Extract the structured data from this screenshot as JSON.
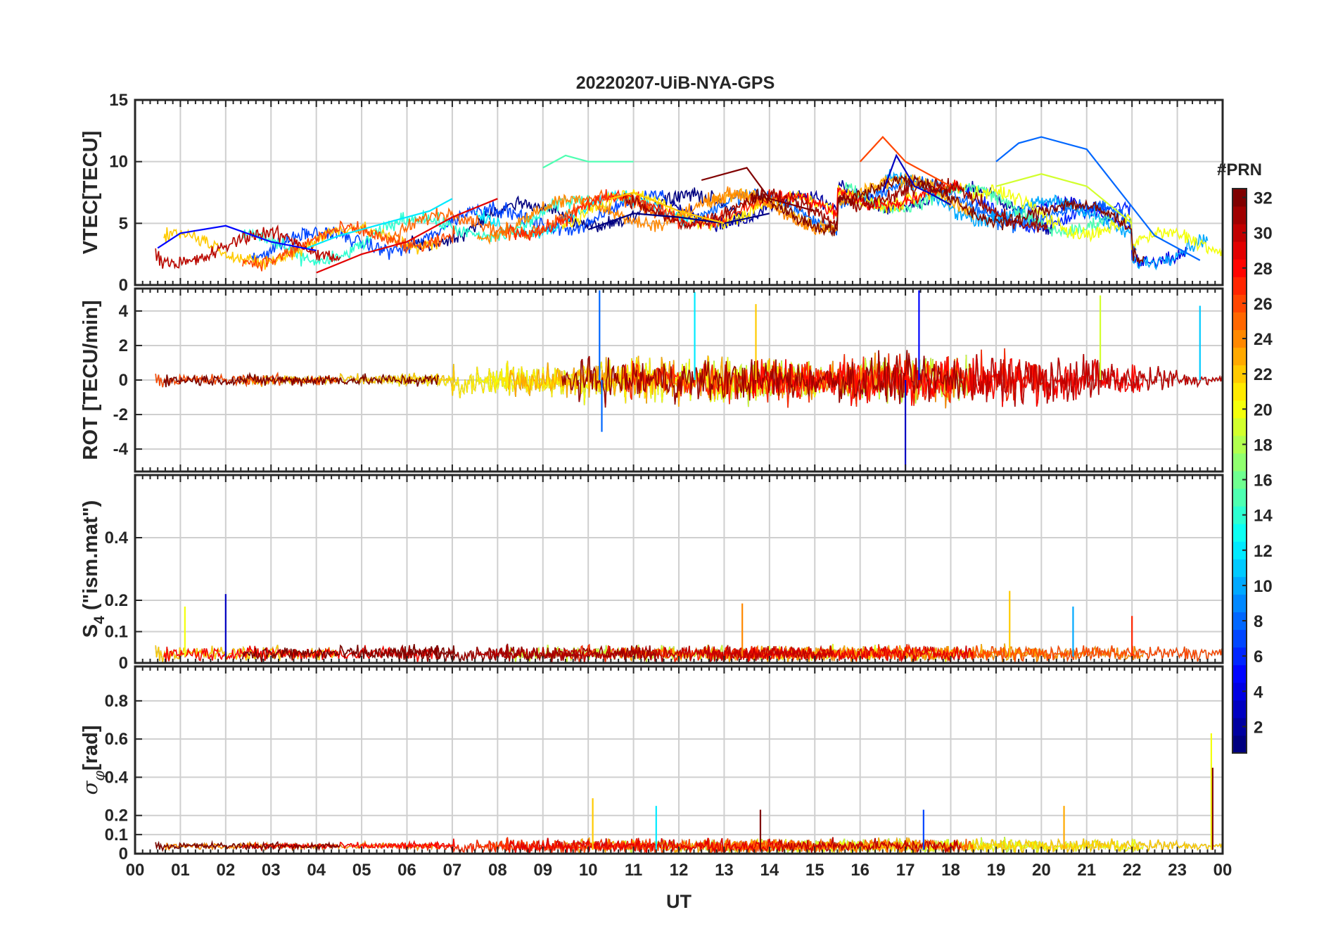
{
  "chart_data": [
    {
      "type": "line",
      "panel": "vtec",
      "title": "20220207-UiB-NYA-GPS",
      "ylabel": "VTEC[TECU]",
      "ylim": [
        0,
        15
      ],
      "yticks": [
        0,
        5,
        10,
        15
      ],
      "ytick_labels": [
        "0",
        "5",
        "10",
        "15"
      ],
      "x_units": "UT hours",
      "xlim": [
        0,
        24
      ],
      "series": [
        {
          "prn": 1,
          "x": [
            10.0,
            11.0,
            12.0,
            13.0,
            14.0
          ],
          "y": [
            4.5,
            5.8,
            5.5,
            5.0,
            5.8
          ]
        },
        {
          "prn": 3,
          "x": [
            16.5,
            16.8,
            17.2,
            17.5,
            18.0
          ],
          "y": [
            7.5,
            10.5,
            8.0,
            7.5,
            6.5
          ]
        },
        {
          "prn": 5,
          "x": [
            0.5,
            1.0,
            2.0,
            3.0,
            4.0
          ],
          "y": [
            3.0,
            4.2,
            4.8,
            3.5,
            2.8
          ]
        },
        {
          "prn": 8,
          "x": [
            19.0,
            19.5,
            20.0,
            21.0,
            22.5,
            23.5
          ],
          "y": [
            10.0,
            11.5,
            12.0,
            11.0,
            4.0,
            2.0
          ]
        },
        {
          "prn": 12,
          "x": [
            3.8,
            4.5,
            5.5,
            6.5,
            7.0
          ],
          "y": [
            3.0,
            4.0,
            5.0,
            6.0,
            7.0
          ]
        },
        {
          "prn": 15,
          "x": [
            9.0,
            9.5,
            10.0,
            11.0
          ],
          "y": [
            9.5,
            10.5,
            10.0,
            10.0
          ]
        },
        {
          "prn": 19,
          "x": [
            19.0,
            20.0,
            21.0,
            22.0
          ],
          "y": [
            8.0,
            9.0,
            8.0,
            5.0
          ]
        },
        {
          "prn": 22,
          "x": [
            10.5,
            11.0,
            12.0,
            13.0
          ],
          "y": [
            7.0,
            7.5,
            6.0,
            5.0
          ]
        },
        {
          "prn": 26,
          "x": [
            16.0,
            16.5,
            17.0,
            17.5,
            18.0
          ],
          "y": [
            10.0,
            12.0,
            10.0,
            9.0,
            8.0
          ]
        },
        {
          "prn": 29,
          "x": [
            4.0,
            5.0,
            6.0,
            7.0,
            8.0
          ],
          "y": [
            1.0,
            2.5,
            3.5,
            5.5,
            7.0
          ]
        },
        {
          "prn": 32,
          "x": [
            12.5,
            13.0,
            13.5,
            14.0,
            15.0
          ],
          "y": [
            8.5,
            9.0,
            9.5,
            7.0,
            6.0
          ]
        }
      ]
    },
    {
      "type": "line",
      "panel": "rot",
      "ylabel": "ROT [TECU/min]",
      "ylim": [
        -5.3,
        5.3
      ],
      "yticks": [
        -4,
        -2,
        0,
        2,
        4
      ],
      "ytick_labels": [
        "-4",
        "-2",
        "0",
        "2",
        "4"
      ],
      "xlim": [
        0,
        24
      ],
      "spikes": [
        {
          "prn": 8,
          "x": 10.25,
          "y": 5.2
        },
        {
          "prn": 8,
          "x": 10.3,
          "y": -3.0
        },
        {
          "prn": 12,
          "x": 12.35,
          "y": 5.1
        },
        {
          "prn": 5,
          "x": 17.3,
          "y": 5.2
        },
        {
          "prn": 3,
          "x": 17.0,
          "y": -5.3
        },
        {
          "prn": 19,
          "x": 21.3,
          "y": 4.9
        },
        {
          "prn": 11,
          "x": 23.5,
          "y": 4.3
        },
        {
          "prn": 22,
          "x": 13.7,
          "y": 4.4
        }
      ]
    },
    {
      "type": "line",
      "panel": "s4",
      "ylabel": "S4 (\"ism.mat\")",
      "ylabel_parts": [
        "S",
        "4",
        " (\"ism.mat\")"
      ],
      "ylim": [
        0,
        0.6
      ],
      "yticks": [
        0,
        0.1,
        0.2,
        0.4
      ],
      "ytick_labels": [
        "0",
        "0.1",
        "0.2",
        "0.4"
      ],
      "xlim": [
        0,
        24
      ],
      "peaks": [
        {
          "prn": 3,
          "x": 2.0,
          "y": 0.22
        },
        {
          "prn": 20,
          "x": 1.1,
          "y": 0.18
        },
        {
          "prn": 24,
          "x": 13.4,
          "y": 0.19
        },
        {
          "prn": 22,
          "x": 19.3,
          "y": 0.23
        },
        {
          "prn": 10,
          "x": 20.7,
          "y": 0.18
        },
        {
          "prn": 27,
          "x": 22.0,
          "y": 0.15
        }
      ]
    },
    {
      "type": "line",
      "panel": "sigma_phi",
      "ylabel": "σφ[rad]",
      "ylabel_parts": [
        "σ",
        "φ",
        "[rad]"
      ],
      "ylim": [
        0,
        0.98
      ],
      "yticks": [
        0,
        0.1,
        0.2,
        0.4,
        0.6,
        0.8
      ],
      "ytick_labels": [
        "0",
        "0.1",
        "0.2",
        "0.4",
        "0.6",
        "0.8"
      ],
      "xlim": [
        0,
        24
      ],
      "xlabel": "UT",
      "xticks": [
        0,
        1,
        2,
        3,
        4,
        5,
        6,
        7,
        8,
        9,
        10,
        11,
        12,
        13,
        14,
        15,
        16,
        17,
        18,
        19,
        20,
        21,
        22,
        23,
        24
      ],
      "xtick_labels": [
        "00",
        "01",
        "02",
        "03",
        "04",
        "05",
        "06",
        "07",
        "08",
        "09",
        "10",
        "11",
        "12",
        "13",
        "14",
        "15",
        "16",
        "17",
        "18",
        "19",
        "20",
        "21",
        "22",
        "23",
        "00"
      ],
      "peaks": [
        {
          "prn": 22,
          "x": 10.1,
          "y": 0.29
        },
        {
          "prn": 12,
          "x": 11.5,
          "y": 0.25
        },
        {
          "prn": 32,
          "x": 13.8,
          "y": 0.23
        },
        {
          "prn": 7,
          "x": 17.4,
          "y": 0.23
        },
        {
          "prn": 23,
          "x": 20.5,
          "y": 0.25
        },
        {
          "prn": 20,
          "x": 23.75,
          "y": 0.63
        },
        {
          "prn": 32,
          "x": 23.78,
          "y": 0.45
        }
      ]
    }
  ],
  "colorbar": {
    "title": "#PRN",
    "range": [
      1,
      32
    ],
    "ticks": [
      2,
      4,
      6,
      8,
      10,
      12,
      14,
      16,
      18,
      20,
      22,
      24,
      26,
      28,
      30,
      32
    ],
    "tick_labels": [
      "2",
      "4",
      "6",
      "8",
      "10",
      "12",
      "14",
      "16",
      "18",
      "20",
      "22",
      "24",
      "26",
      "28",
      "30",
      "32"
    ],
    "colormap": "jet"
  }
}
